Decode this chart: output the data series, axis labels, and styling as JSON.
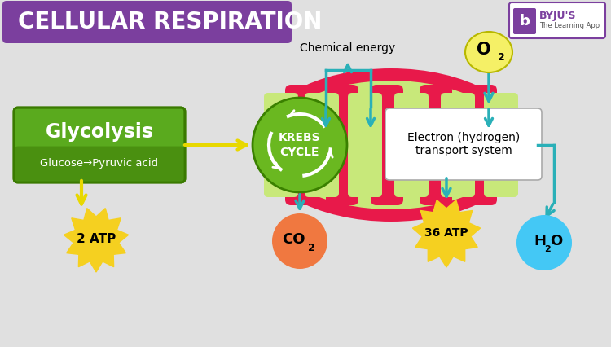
{
  "title": "CELLULAR RESPIRATION",
  "title_bg": "#7b3f9e",
  "title_color": "#ffffff",
  "bg_color": "#e0e0e0",
  "glycolysis_box_color": "#5aaa1e",
  "glycolysis_text": "Glycolysis",
  "glycolysis_sub": "Glucose→Pyruvic acid",
  "krebs_color": "#6ab820",
  "electron_box_color": "#ffffff",
  "electron_text": "Electron (hydrogen)\ntransport system",
  "mito_outer_color": "#e8194a",
  "mito_inner_color": "#c8e87a",
  "chemical_energy_text": "Chemical energy",
  "o2_color": "#f5f066",
  "h2o_color": "#44c8f5",
  "atp_color": "#f5d020",
  "co2_color": "#f07840",
  "arrow_color": "#2ab0b8",
  "yellow_arrow_color": "#e8d800",
  "byju_color": "#7b3f9e"
}
